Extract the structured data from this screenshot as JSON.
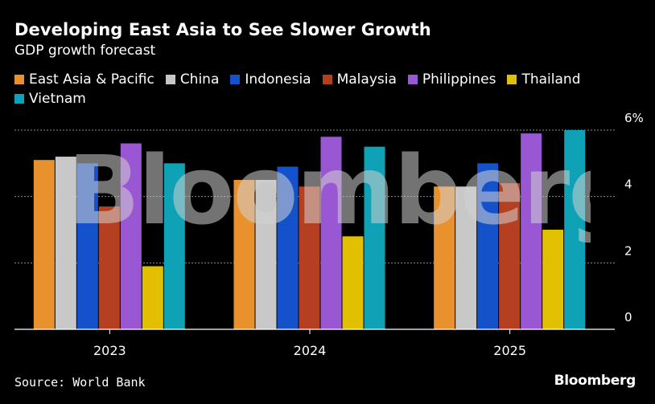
{
  "title": "Developing East Asia to See Slower Growth",
  "subtitle": "GDP growth forecast",
  "source": "Source: World Bank",
  "brand": "Bloomberg",
  "watermark": "Bloomberg",
  "chart_data": {
    "type": "bar",
    "title": "Developing East Asia to See Slower Growth",
    "subtitle": "GDP growth forecast",
    "xlabel": "",
    "ylabel": "",
    "categories": [
      "2023",
      "2024",
      "2025"
    ],
    "series": [
      {
        "name": "East Asia & Pacific",
        "color": "#E8912D",
        "values": [
          5.1,
          4.5,
          4.3
        ]
      },
      {
        "name": "China",
        "color": "#C8C8C8",
        "values": [
          5.2,
          4.5,
          4.3
        ]
      },
      {
        "name": "Indonesia",
        "color": "#1452CC",
        "values": [
          5.0,
          4.9,
          5.0
        ]
      },
      {
        "name": "Malaysia",
        "color": "#B53F21",
        "values": [
          3.7,
          4.3,
          4.4
        ]
      },
      {
        "name": "Philippines",
        "color": "#9A57D3",
        "values": [
          5.6,
          5.8,
          5.9
        ]
      },
      {
        "name": "Thailand",
        "color": "#E0C000",
        "values": [
          1.9,
          2.8,
          3.0
        ]
      },
      {
        "name": "Vietnam",
        "color": "#0FA1B5",
        "values": [
          5.0,
          5.5,
          6.0
        ]
      }
    ],
    "ylim": [
      0,
      6
    ],
    "yticks": [
      {
        "value": 0,
        "label": "0"
      },
      {
        "value": 2,
        "label": "2"
      },
      {
        "value": 4,
        "label": "4"
      },
      {
        "value": 6,
        "label": "6%"
      }
    ],
    "grid": true,
    "legend_position": "top-left"
  }
}
